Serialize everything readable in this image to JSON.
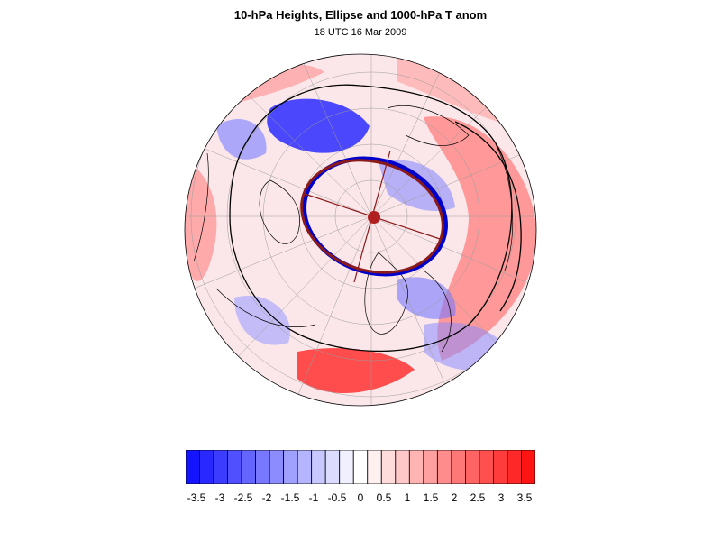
{
  "figure": {
    "title": "10-hPa Heights, Ellipse and 1000-hPa T anom",
    "subtitle": "18 UTC 16 Mar 2009"
  },
  "colorbar": {
    "labels": [
      "-3.5",
      "-3",
      "-2.5",
      "-2",
      "-1.5",
      "-1",
      "-0.5",
      "0",
      "0.5",
      "1",
      "1.5",
      "2",
      "2.5",
      "3",
      "3.5"
    ],
    "colors": [
      "#1414ff",
      "#2828ff",
      "#3c3cff",
      "#5050ff",
      "#6464ff",
      "#7878ff",
      "#8c8cff",
      "#a0a0ff",
      "#b4b4ff",
      "#c8c8ff",
      "#dcdcff",
      "#f0f0ff",
      "#ffffff",
      "#fff0f0",
      "#ffdcdc",
      "#ffc8c8",
      "#ffb4b4",
      "#ffa0a0",
      "#ff8c8c",
      "#ff7878",
      "#ff6464",
      "#ff5050",
      "#ff3c3c",
      "#ff2828",
      "#ff1414"
    ]
  },
  "colors": {
    "ellipse_red": "#8b1a1a",
    "ellipse_blue": "#0000cc",
    "contour": "#000000",
    "grid": "#999999"
  }
}
